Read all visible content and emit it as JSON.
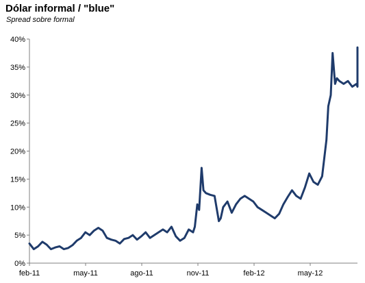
{
  "chart_data": {
    "type": "line",
    "title": "Dólar informal  /  \"blue\"",
    "subtitle": "Spread sobre formal",
    "xlabel": "",
    "ylabel": "",
    "ylim": [
      0,
      40
    ],
    "y_ticks": [
      "0%",
      "5%",
      "10%",
      "15%",
      "20%",
      "25%",
      "30%",
      "35%",
      "40%"
    ],
    "x_ticks": [
      "feb-11",
      "may-11",
      "ago-11",
      "nov-11",
      "feb-12",
      "may-12"
    ],
    "grid": false,
    "legend": "none",
    "colors": {
      "line": "#1f3b6b",
      "axis": "#7f7f7f"
    },
    "series": [
      {
        "x": [
          "2011-02-01",
          "2011-02-08",
          "2011-02-15",
          "2011-02-22",
          "2011-03-01",
          "2011-03-08",
          "2011-03-15",
          "2011-03-22",
          "2011-03-29",
          "2011-04-05",
          "2011-04-12",
          "2011-04-19",
          "2011-04-26",
          "2011-05-03",
          "2011-05-10",
          "2011-05-17",
          "2011-05-24",
          "2011-05-31",
          "2011-06-07",
          "2011-06-14",
          "2011-06-21",
          "2011-06-28",
          "2011-07-05",
          "2011-07-12",
          "2011-07-19",
          "2011-07-26",
          "2011-08-02",
          "2011-08-09",
          "2011-08-16",
          "2011-08-23",
          "2011-08-30",
          "2011-09-06",
          "2011-09-13",
          "2011-09-20",
          "2011-09-27",
          "2011-10-04",
          "2011-10-11",
          "2011-10-18",
          "2011-10-25",
          "2011-10-28",
          "2011-11-01",
          "2011-11-04",
          "2011-11-08",
          "2011-11-11",
          "2011-11-15",
          "2011-11-22",
          "2011-11-29",
          "2011-12-06",
          "2011-12-09",
          "2011-12-13",
          "2011-12-20",
          "2011-12-27",
          "2012-01-03",
          "2012-01-10",
          "2012-01-17",
          "2012-01-24",
          "2012-01-31",
          "2012-02-07",
          "2012-02-14",
          "2012-02-21",
          "2012-02-28",
          "2012-03-06",
          "2012-03-13",
          "2012-03-20",
          "2012-03-27",
          "2012-04-03",
          "2012-04-10",
          "2012-04-17",
          "2012-04-24",
          "2012-05-01",
          "2012-05-08",
          "2012-05-15",
          "2012-05-22",
          "2012-05-29",
          "2012-06-01",
          "2012-06-05",
          "2012-06-08",
          "2012-06-12",
          "2012-06-15",
          "2012-06-19",
          "2012-06-26",
          "2012-07-03",
          "2012-07-10",
          "2012-07-17",
          "2012-07-24",
          "2012-07-31",
          "2012-08-07",
          "2012-08-14",
          "2012-08-17"
        ],
        "y": [
          3.5,
          2.5,
          3.0,
          3.8,
          3.3,
          2.5,
          2.8,
          3.0,
          2.5,
          2.7,
          3.2,
          4.0,
          4.5,
          5.5,
          5.0,
          5.8,
          6.3,
          5.8,
          4.5,
          4.2,
          4.0,
          3.5,
          4.3,
          4.5,
          5.0,
          4.2,
          4.8,
          5.5,
          4.5,
          5.0,
          5.5,
          6.0,
          5.5,
          6.5,
          4.8,
          4.0,
          4.5,
          6.0,
          5.5,
          6.5,
          10.5,
          9.5,
          17.0,
          13.0,
          12.5,
          12.2,
          12.0,
          7.5,
          8.0,
          10.0,
          11.0,
          9.0,
          10.5,
          11.5,
          12.0,
          11.5,
          11.0,
          10.0,
          9.5,
          9.0,
          8.5,
          8.0,
          8.8,
          10.5,
          11.8,
          13.0,
          12.0,
          11.5,
          13.5,
          16.0,
          14.5,
          14.0,
          15.5,
          22.0,
          28.0,
          30.0,
          37.5,
          32.0,
          33.0,
          32.5,
          32.0,
          32.5,
          31.5,
          32.0,
          31.5,
          31.5,
          31.5,
          36.0,
          38.5
        ]
      }
    ]
  }
}
